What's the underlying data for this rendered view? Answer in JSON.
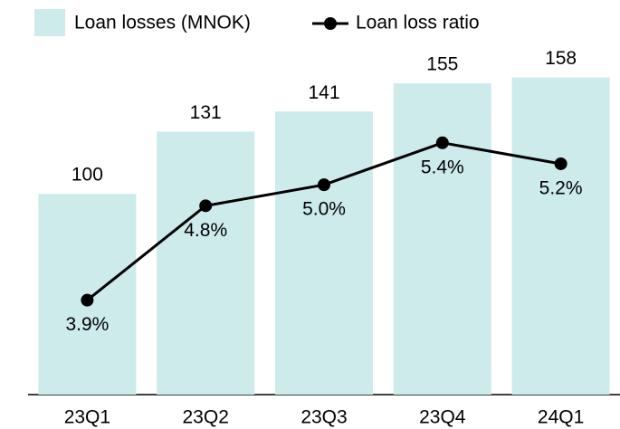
{
  "chart_data": {
    "type": "bar",
    "categories": [
      "23Q1",
      "23Q2",
      "23Q3",
      "23Q4",
      "24Q1"
    ],
    "series": [
      {
        "name": "Loan losses (MNOK)",
        "type": "bar",
        "color": "#cdebeb",
        "values": [
          100,
          131,
          141,
          155,
          158
        ]
      },
      {
        "name": "Loan loss ratio",
        "type": "line",
        "color": "#000000",
        "axis": "y2",
        "values": [
          3.9,
          4.8,
          5.0,
          5.4,
          5.2
        ],
        "value_labels": [
          "3.9%",
          "4.8%",
          "5.0%",
          "5.4%",
          "5.2%"
        ]
      }
    ],
    "ylim": [
      0,
      174
    ],
    "y2lim": [
      3.0,
      6.33
    ]
  }
}
